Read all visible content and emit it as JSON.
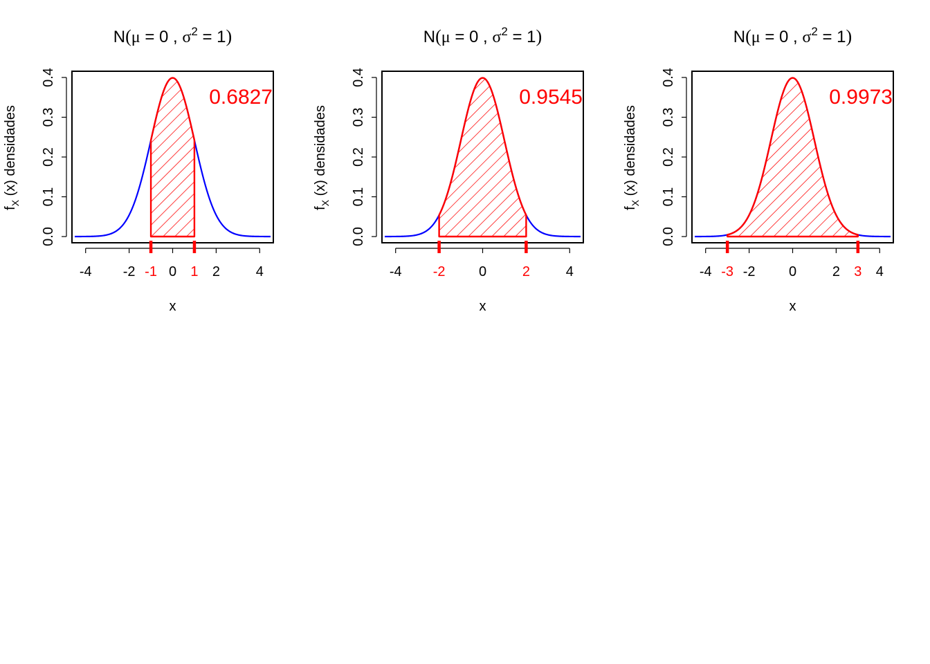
{
  "colors": {
    "curve": "#0000ff",
    "highlight": "#ff0000",
    "axis": "#000000",
    "background": "#ffffff"
  },
  "chart_data": [
    {
      "type": "area",
      "title": "N (μ = 0 , σ2 = 1)",
      "title_parts": {
        "prefix": "N",
        "mu": "μ",
        "mu_value": "0",
        "sigma": "σ",
        "sigma_exponent": "2",
        "sigma_value": "1"
      },
      "xlabel": "x",
      "ylabel": "fX (x)  densidades",
      "ylabel_parts": {
        "f": "f",
        "sub": "X",
        "arg": "(x)",
        "name": "densidades"
      },
      "xlim": [
        -4.5,
        4.5
      ],
      "ylim": [
        0,
        0.4
      ],
      "x_ticks": [
        "-4",
        "-2",
        "0",
        "2",
        "4"
      ],
      "y_ticks": [
        "0.0",
        "0.1",
        "0.2",
        "0.3",
        "0.4"
      ],
      "highlight_ticks": [
        "-1",
        "1"
      ],
      "shaded_interval": [
        -1,
        1
      ],
      "probability": "0.6827",
      "series": [
        {
          "function": "normal_pdf",
          "mean": 0,
          "variance": 1,
          "x_range": [
            -4.5,
            4.5
          ]
        }
      ],
      "grid": false
    },
    {
      "type": "area",
      "title": "N (μ = 0 , σ2 = 1)",
      "title_parts": {
        "prefix": "N",
        "mu": "μ",
        "mu_value": "0",
        "sigma": "σ",
        "sigma_exponent": "2",
        "sigma_value": "1"
      },
      "xlabel": "x",
      "ylabel": "fX (x)  densidades",
      "ylabel_parts": {
        "f": "f",
        "sub": "X",
        "arg": "(x)",
        "name": "densidades"
      },
      "xlim": [
        -4.5,
        4.5
      ],
      "ylim": [
        0,
        0.4
      ],
      "x_ticks": [
        "-4",
        "0",
        "4"
      ],
      "y_ticks": [
        "0.0",
        "0.1",
        "0.2",
        "0.3",
        "0.4"
      ],
      "highlight_ticks": [
        "-2",
        "2"
      ],
      "shaded_interval": [
        -2,
        2
      ],
      "probability": "0.9545",
      "series": [
        {
          "function": "normal_pdf",
          "mean": 0,
          "variance": 1,
          "x_range": [
            -4.5,
            4.5
          ]
        }
      ],
      "grid": false
    },
    {
      "type": "area",
      "title": "N (μ = 0 , σ2 = 1)",
      "title_parts": {
        "prefix": "N",
        "mu": "μ",
        "mu_value": "0",
        "sigma": "σ",
        "sigma_exponent": "2",
        "sigma_value": "1"
      },
      "xlabel": "x",
      "ylabel": "fX (x)  densidades",
      "ylabel_parts": {
        "f": "f",
        "sub": "X",
        "arg": "(x)",
        "name": "densidades"
      },
      "xlim": [
        -4.5,
        4.5
      ],
      "ylim": [
        0,
        0.4
      ],
      "x_ticks": [
        "-4",
        "-2",
        "0",
        "2",
        "4"
      ],
      "y_ticks": [
        "0.0",
        "0.1",
        "0.2",
        "0.3",
        "0.4"
      ],
      "highlight_ticks": [
        "-3",
        "3"
      ],
      "shaded_interval": [
        -3,
        3
      ],
      "probability": "0.9973",
      "series": [
        {
          "function": "normal_pdf",
          "mean": 0,
          "variance": 1,
          "x_range": [
            -4.5,
            4.5
          ]
        }
      ],
      "grid": false
    }
  ]
}
